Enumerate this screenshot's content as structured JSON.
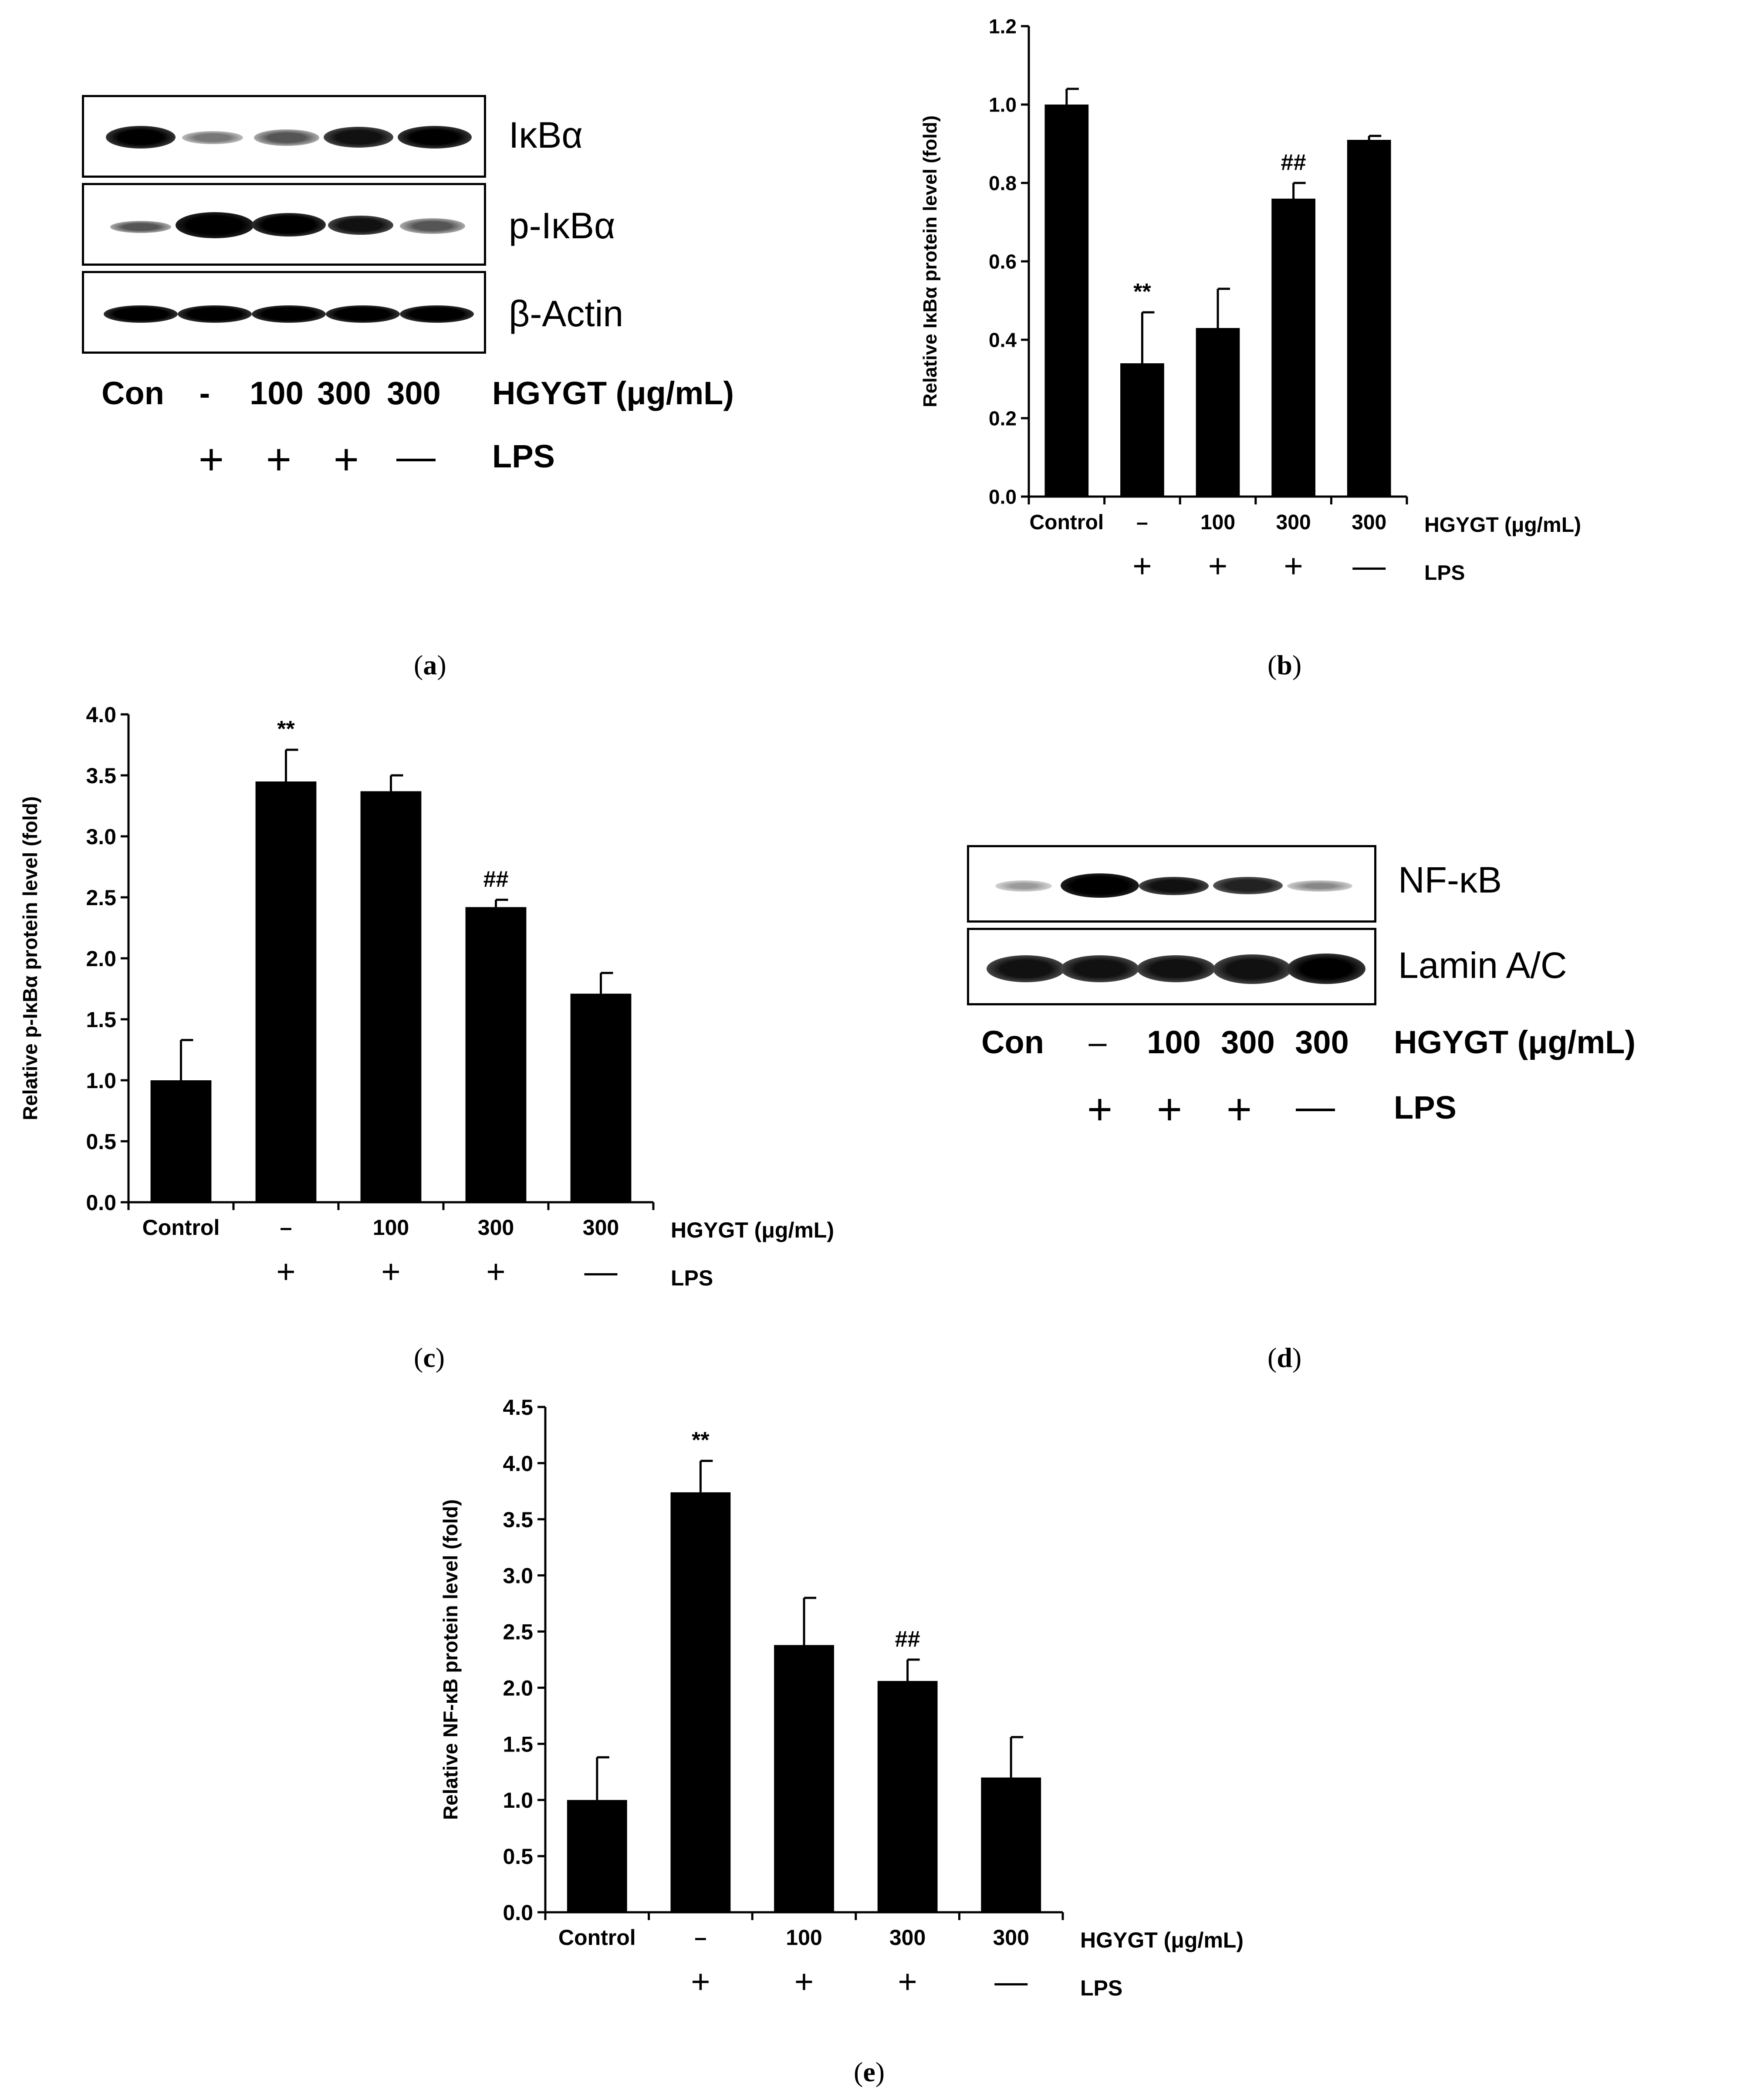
{
  "panels": {
    "a": {
      "label_open": "(",
      "letter": "a",
      "label_close": ")",
      "blot_rows": [
        "IκBα",
        "p-IκBα",
        "β-Actin"
      ],
      "lanes": [
        "Con",
        "-",
        "100",
        "300",
        "300"
      ],
      "treatment_label": "HGYGT (μg/mL)",
      "lps_marks": [
        "",
        "+",
        "+",
        "+",
        "—"
      ],
      "lps_label": "LPS"
    },
    "b": {
      "label_open": "(",
      "letter": "b",
      "label_close": ")"
    },
    "c": {
      "label_open": "(",
      "letter": "c",
      "label_close": ")"
    },
    "d": {
      "label_open": "(",
      "letter": "d",
      "label_close": ")",
      "blot_rows": [
        "NF-κB",
        "Lamin A/C"
      ],
      "lanes": [
        "Con",
        "–",
        "100",
        "300",
        "300"
      ],
      "treatment_label": "HGYGT (μg/mL)",
      "lps_marks": [
        "",
        "+",
        "+",
        "+",
        "—"
      ],
      "lps_label": "LPS"
    },
    "e": {
      "label_open": "(",
      "letter": "e",
      "label_close": ")"
    }
  },
  "chart_data": [
    {
      "id": "b",
      "type": "bar",
      "categories": [
        "Control",
        "–",
        "100",
        "300",
        "300"
      ],
      "values": [
        1.0,
        0.34,
        0.43,
        0.76,
        0.91
      ],
      "errors": [
        0.04,
        0.13,
        0.1,
        0.04,
        0.01
      ],
      "annotations": [
        "",
        "**",
        "",
        "##",
        ""
      ],
      "lps_marks": [
        "",
        "+",
        "+",
        "+",
        "—"
      ],
      "ylabel": "Relative IκBα protein level (fold)",
      "ylim": [
        0,
        1.2
      ],
      "yticks": [
        "0.0",
        "0.2",
        "0.4",
        "0.6",
        "0.8",
        "1.0",
        "1.2"
      ],
      "category_axis_label": "HGYGT (μg/mL)",
      "lps_label": "LPS",
      "color": "#000000"
    },
    {
      "id": "c",
      "type": "bar",
      "categories": [
        "Control",
        "–",
        "100",
        "300",
        "300"
      ],
      "values": [
        1.0,
        3.45,
        3.37,
        2.42,
        1.71
      ],
      "errors": [
        0.33,
        0.26,
        0.13,
        0.06,
        0.17
      ],
      "annotations": [
        "",
        "**",
        "",
        "##",
        ""
      ],
      "lps_marks": [
        "",
        "+",
        "+",
        "+",
        "—"
      ],
      "ylabel": "Relative p-IκBα protein level (fold)",
      "ylim": [
        0,
        4.0
      ],
      "yticks": [
        "0.0",
        "0.5",
        "1.0",
        "1.5",
        "2.0",
        "2.5",
        "3.0",
        "3.5",
        "4.0"
      ],
      "category_axis_label": "HGYGT (μg/mL)",
      "lps_label": "LPS",
      "color": "#000000"
    },
    {
      "id": "e",
      "type": "bar",
      "categories": [
        "Control",
        "–",
        "100",
        "300",
        "300"
      ],
      "values": [
        1.0,
        3.74,
        2.38,
        2.06,
        1.2
      ],
      "errors": [
        0.38,
        0.28,
        0.42,
        0.19,
        0.36
      ],
      "annotations": [
        "",
        "**",
        "",
        "##",
        ""
      ],
      "lps_marks": [
        "",
        "+",
        "+",
        "+",
        "—"
      ],
      "ylabel": "Relative NF-κB protein level (fold)",
      "ylim": [
        0,
        4.5
      ],
      "yticks": [
        "0.0",
        "0.5",
        "1.0",
        "1.5",
        "2.0",
        "2.5",
        "3.0",
        "3.5",
        "4.0",
        "4.5"
      ],
      "category_axis_label": "HGYGT (μg/mL)",
      "lps_label": "LPS",
      "color": "#000000"
    }
  ]
}
